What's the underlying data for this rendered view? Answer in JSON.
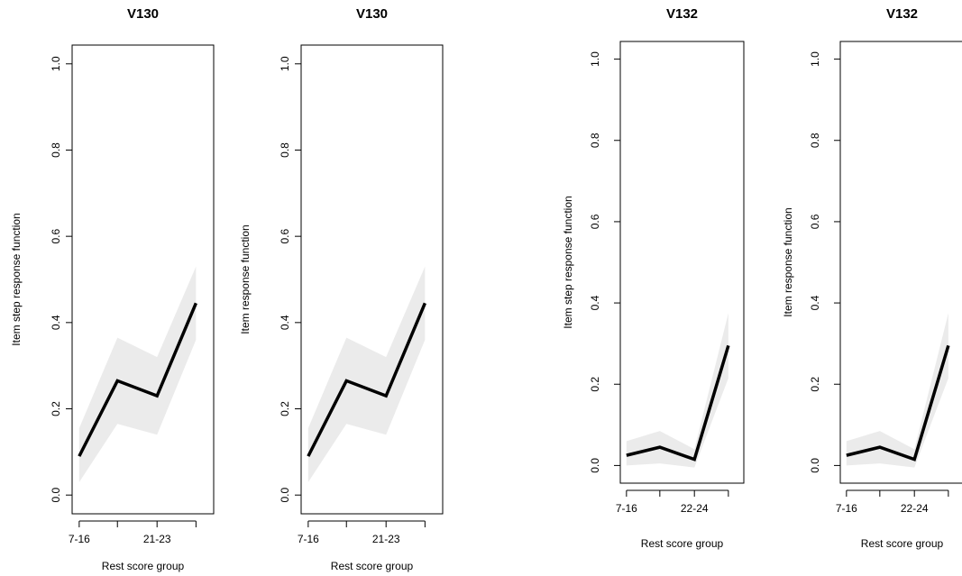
{
  "chart_data": [
    {
      "type": "line",
      "title": "V130",
      "xlabel": "Rest score group",
      "ylabel": "Item step response function",
      "ylim": [
        0,
        1
      ],
      "yticks": [
        "0.0",
        "0.2",
        "0.4",
        "0.6",
        "0.8",
        "1.0"
      ],
      "x_tick_labels": [
        "7-16",
        "",
        "21-23",
        ""
      ],
      "series": [
        {
          "values": [
            0.09,
            0.265,
            0.23,
            0.445
          ]
        }
      ],
      "band": {
        "lower": [
          0.03,
          0.165,
          0.14,
          0.36
        ],
        "upper": [
          0.155,
          0.365,
          0.32,
          0.53
        ]
      },
      "grid": false,
      "legend": "none"
    },
    {
      "type": "line",
      "title": "V130",
      "xlabel": "Rest score group",
      "ylabel": "Item response function",
      "ylim": [
        0,
        1
      ],
      "yticks": [
        "0.0",
        "0.2",
        "0.4",
        "0.6",
        "0.8",
        "1.0"
      ],
      "x_tick_labels": [
        "7-16",
        "",
        "21-23",
        ""
      ],
      "series": [
        {
          "values": [
            0.09,
            0.265,
            0.23,
            0.445
          ]
        }
      ],
      "band": {
        "lower": [
          0.03,
          0.165,
          0.14,
          0.36
        ],
        "upper": [
          0.155,
          0.365,
          0.32,
          0.53
        ]
      },
      "grid": false,
      "legend": "none"
    },
    {
      "type": "line",
      "title": "V132",
      "xlabel": "Rest score group",
      "ylabel": "Item step response function",
      "ylim": [
        0,
        1
      ],
      "yticks": [
        "0.0",
        "0.2",
        "0.4",
        "0.6",
        "0.8",
        "1.0"
      ],
      "x_tick_labels": [
        "7-16",
        "",
        "22-24",
        ""
      ],
      "series": [
        {
          "values": [
            0.025,
            0.045,
            0.015,
            0.295
          ]
        }
      ],
      "band": {
        "lower": [
          0.0,
          0.005,
          -0.005,
          0.215
        ],
        "upper": [
          0.06,
          0.085,
          0.04,
          0.375
        ]
      },
      "grid": false,
      "legend": "none"
    },
    {
      "type": "line",
      "title": "V132",
      "xlabel": "Rest score group",
      "ylabel": "Item response function",
      "ylim": [
        0,
        1
      ],
      "yticks": [
        "0.0",
        "0.2",
        "0.4",
        "0.6",
        "0.8",
        "1.0"
      ],
      "x_tick_labels": [
        "7-16",
        "",
        "22-24",
        ""
      ],
      "series": [
        {
          "values": [
            0.025,
            0.045,
            0.015,
            0.295
          ]
        }
      ],
      "band": {
        "lower": [
          0.0,
          0.005,
          -0.005,
          0.215
        ],
        "upper": [
          0.06,
          0.085,
          0.04,
          0.375
        ]
      },
      "grid": false,
      "legend": "none"
    }
  ]
}
